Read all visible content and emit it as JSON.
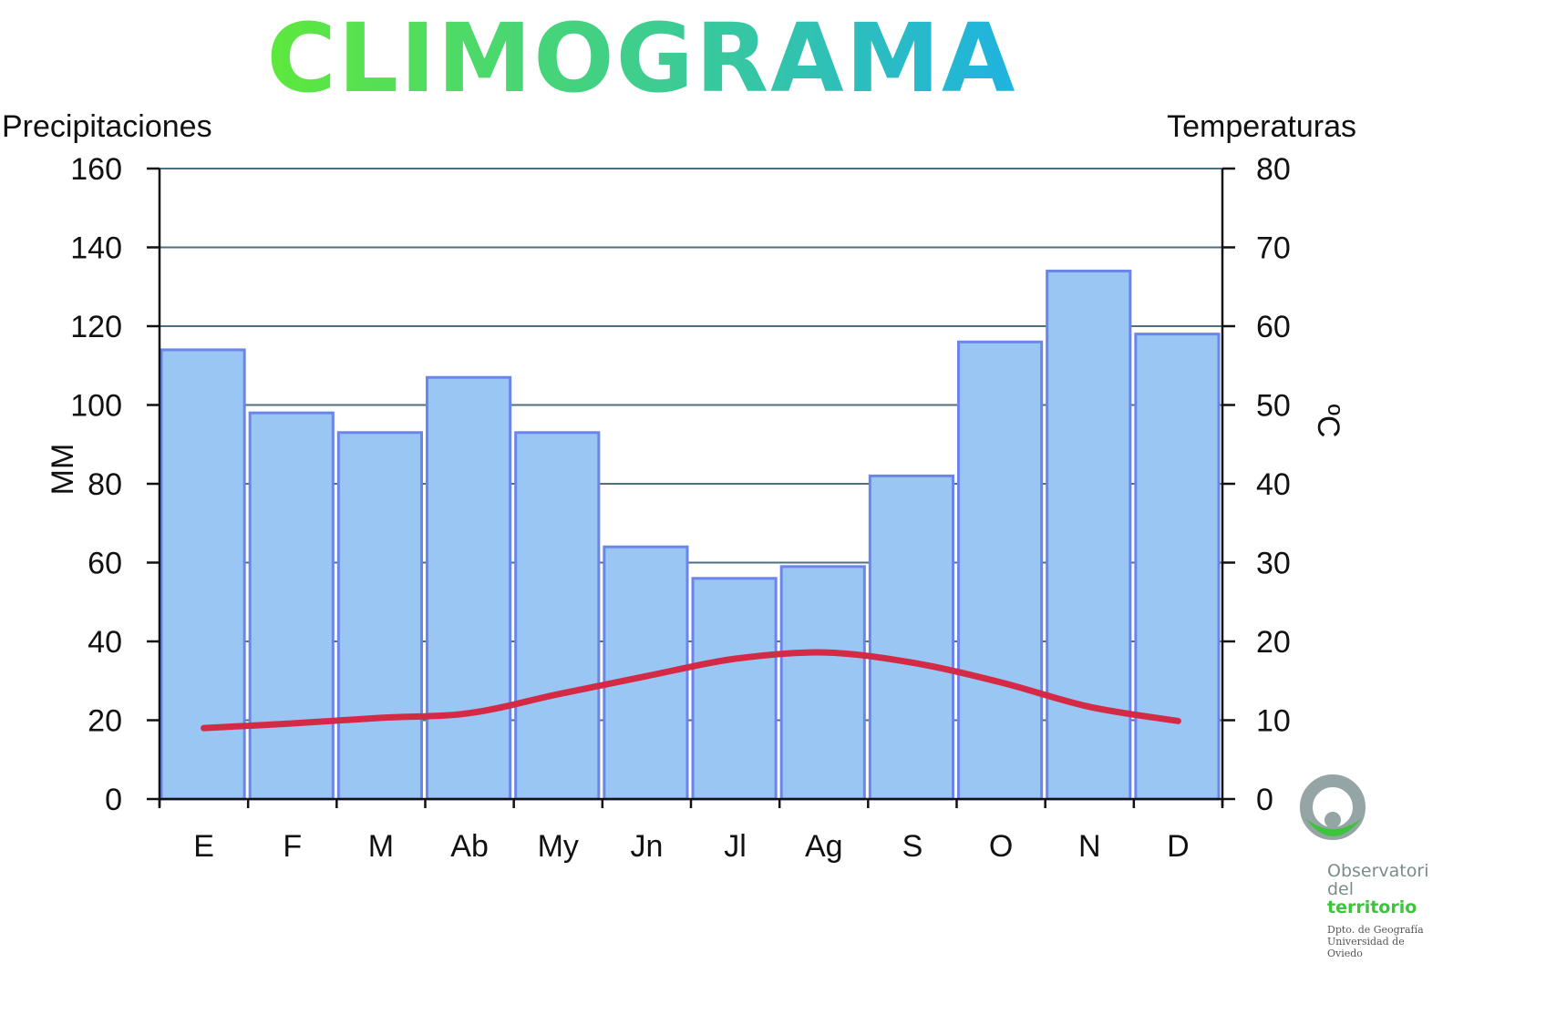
{
  "title": "CLIMOGRAMA",
  "left_axis_title": "Precipitaciones",
  "right_axis_title": "Temperaturas",
  "left_unit": "MM",
  "right_unit": "ºC",
  "logo": {
    "line1": "Observatorio",
    "line2": "del",
    "line3": "territorio",
    "line4": "Dpto. de Geografía",
    "line5": "Universidad de",
    "line6": "Oviedo"
  },
  "colors": {
    "title_gradient_start": "#5ee83c",
    "title_gradient_end": "#1fb3e0",
    "bar_fill": "#99c6f2",
    "bar_stroke": "#6a86ea",
    "line": "#d42a46",
    "grid": "#4f6f80",
    "logo_gray": "#95a5a5",
    "logo_green": "#3cc43c"
  },
  "chart_data": {
    "type": "bar",
    "categories": [
      "E",
      "F",
      "M",
      "Ab",
      "My",
      "Jn",
      "Jl",
      "Ag",
      "S",
      "O",
      "N",
      "D"
    ],
    "series": [
      {
        "type": "bar",
        "axis": "left",
        "values": [
          114,
          98,
          93,
          107,
          93,
          64,
          56,
          59,
          82,
          116,
          134,
          118
        ]
      },
      {
        "type": "line",
        "axis": "right",
        "values": [
          9.0,
          9.6,
          10.3,
          10.9,
          13.3,
          15.6,
          17.8,
          18.6,
          17.3,
          14.8,
          11.7,
          9.9
        ]
      }
    ],
    "y_left": {
      "label": "MM",
      "lim": [
        0,
        160
      ],
      "ticks": [
        "0",
        "20",
        "40",
        "60",
        "80",
        "100",
        "120",
        "140",
        "160"
      ]
    },
    "y_right": {
      "label": "ºC",
      "lim": [
        0,
        80
      ],
      "ticks": [
        "0",
        "10",
        "20",
        "30",
        "40",
        "50",
        "60",
        "70",
        "80"
      ]
    },
    "grid": true,
    "legend": "none"
  }
}
